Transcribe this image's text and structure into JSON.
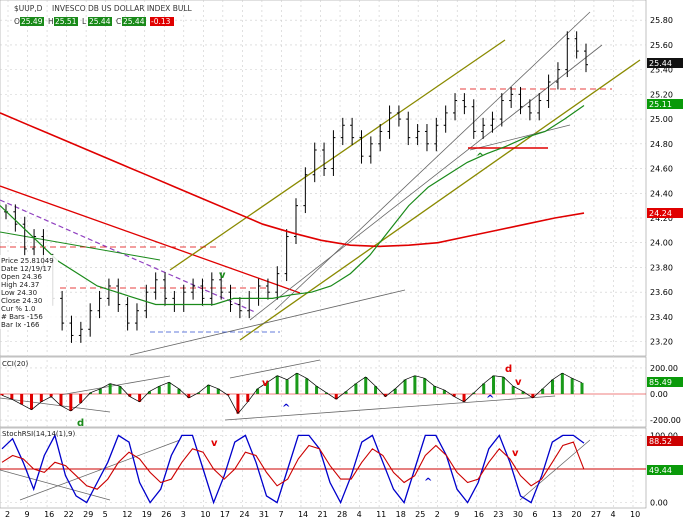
{
  "header": {
    "symbol": "$UUP,D",
    "title": "INVESCO DB US DOLLAR INDEX BULL",
    "items": [
      {
        "label": "O",
        "value": "25.49",
        "color": "#1a8a1a"
      },
      {
        "label": "H",
        "value": "25.51",
        "color": "#1a8a1a"
      },
      {
        "label": "L",
        "value": "25.44",
        "color": "#1a8a1a"
      },
      {
        "label": "C",
        "value": "25.44",
        "color": "#1a8a1a"
      },
      {
        "label": "",
        "value": "-0.13",
        "color": "#e00000"
      }
    ]
  },
  "info_box": [
    "Price  25.81049",
    "Date  12/19/17",
    "Open  24.36",
    "High  24.37",
    "Low  24.30",
    "Close  24.30",
    "Cur %  1.0",
    "# Bars  -156",
    "Bar Ix  -166"
  ],
  "colors": {
    "price_bar": "#000000",
    "ma_long": "#e00000",
    "ma_short": "#1a8a1a",
    "channel": "#8a8a00",
    "trend_gray": "#666666",
    "dash_purple": "#9040c0",
    "cci_fill": "#1a9a1a",
    "cci_neg": "#e00000",
    "stoch_fast": "#0000cc",
    "stoch_slow": "#cc0000",
    "label_bg_black": "#111111",
    "label_bg_green": "#0a9a0a",
    "label_bg_red": "#e00000"
  },
  "chart_data": [
    {
      "type": "line",
      "panel": "price",
      "ylim": [
        23.1,
        25.85
      ],
      "y_ticks": [
        "25.80",
        "25.60",
        "25.40",
        "25.20",
        "25.00",
        "24.80",
        "24.60",
        "24.40",
        "24.20",
        "24.00",
        "23.80",
        "23.60",
        "23.40",
        "23.20"
      ],
      "x_ticks": [
        "2",
        "9",
        "16",
        "22",
        "29",
        "5",
        "12",
        "19",
        "26",
        "3",
        "10",
        "17",
        "24",
        "31",
        "7",
        "14",
        "21",
        "28",
        "4",
        "11",
        "18",
        "25",
        "2",
        "9",
        "16",
        "23",
        "30",
        "6",
        "13",
        "20",
        "27",
        "4",
        "10"
      ],
      "last_price_label": "25.44",
      "ma_short_label": "25.11",
      "ma_long_label": "24.24",
      "series": [
        {
          "name": "",
          "role": "price",
          "values": [
            24.25,
            24.15,
            23.95,
            24.05,
            23.85,
            23.55,
            23.35,
            23.25,
            23.3,
            23.45,
            23.55,
            23.65,
            23.5,
            23.35,
            23.45,
            23.6,
            23.7,
            23.55,
            23.5,
            23.6,
            23.65,
            23.55,
            23.7,
            23.6,
            23.5,
            23.45,
            23.55,
            23.65,
            23.6,
            23.75,
            24.05,
            24.3,
            24.55,
            24.75,
            24.6,
            24.85,
            24.95,
            24.85,
            24.7,
            24.8,
            24.9,
            25.05,
            25.0,
            24.85,
            24.9,
            24.8,
            24.95,
            25.05,
            25.15,
            25.1,
            24.9,
            24.95,
            25.0,
            25.15,
            25.2,
            25.1,
            25.05,
            25.15,
            25.3,
            25.4,
            25.65,
            25.55,
            25.44
          ]
        },
        {
          "name": "",
          "role": "ma_short",
          "values": [
            24.3,
            24.15,
            24.0,
            23.85,
            23.75,
            23.65,
            23.6,
            23.55,
            23.5,
            23.5,
            23.5,
            23.5,
            23.55,
            23.55,
            23.55,
            23.58,
            23.6,
            23.65,
            23.75,
            23.9,
            24.1,
            24.3,
            24.45,
            24.55,
            24.65,
            24.72,
            24.78,
            24.85,
            24.9,
            25.0,
            25.11
          ]
        },
        {
          "name": "",
          "role": "ma_long",
          "values": [
            25.05,
            24.95,
            24.85,
            24.75,
            24.65,
            24.55,
            24.45,
            24.35,
            24.25,
            24.15,
            24.08,
            24.02,
            23.98,
            23.97,
            23.98,
            24.0,
            24.05,
            24.1,
            24.15,
            24.2,
            24.24
          ]
        }
      ],
      "annotations": [
        "v",
        "^"
      ]
    },
    {
      "type": "area",
      "panel": "cci",
      "title": "CCI(20)",
      "ylim": [
        -230,
        230
      ],
      "y_ticks": [
        "200.00",
        "0.00",
        "-200.00"
      ],
      "value_label": "85.49",
      "annotations": [
        "d",
        "v",
        "^",
        "d",
        "v",
        "^"
      ],
      "series": [
        {
          "name": "",
          "values": [
            -10,
            -40,
            -80,
            -120,
            -60,
            -20,
            -90,
            -130,
            -70,
            10,
            40,
            80,
            60,
            -20,
            -60,
            20,
            60,
            90,
            40,
            -30,
            10,
            70,
            40,
            -10,
            -150,
            -60,
            40,
            90,
            140,
            110,
            160,
            120,
            60,
            10,
            -40,
            20,
            80,
            130,
            60,
            -20,
            40,
            110,
            140,
            120,
            60,
            30,
            -20,
            -60,
            10,
            80,
            140,
            130,
            60,
            20,
            -30,
            40,
            110,
            160,
            120,
            85.49
          ]
        }
      ]
    },
    {
      "type": "line",
      "panel": "stochrsi",
      "title": "StochRSI(14,14(1),9)",
      "ylim": [
        -5,
        105
      ],
      "y_ticks": [
        "100.00",
        "0.00"
      ],
      "fast_label": "88.52",
      "slow_label": "49.44",
      "annotations": [
        "v",
        "^",
        "v"
      ],
      "series": [
        {
          "name": "",
          "role": "fast",
          "values": [
            80,
            95,
            60,
            20,
            70,
            100,
            40,
            10,
            0,
            30,
            60,
            100,
            90,
            30,
            0,
            20,
            70,
            100,
            100,
            50,
            0,
            40,
            90,
            100,
            60,
            10,
            0,
            50,
            100,
            100,
            80,
            30,
            0,
            40,
            90,
            100,
            60,
            20,
            0,
            50,
            100,
            100,
            70,
            20,
            0,
            30,
            80,
            100,
            60,
            10,
            0,
            40,
            90,
            100,
            100,
            88.52
          ]
        },
        {
          "name": "",
          "role": "slow",
          "values": [
            60,
            70,
            65,
            50,
            45,
            60,
            55,
            40,
            25,
            20,
            35,
            60,
            75,
            65,
            45,
            30,
            35,
            60,
            80,
            75,
            50,
            35,
            50,
            75,
            70,
            45,
            25,
            35,
            65,
            85,
            80,
            55,
            35,
            35,
            60,
            80,
            70,
            45,
            30,
            40,
            70,
            85,
            70,
            45,
            30,
            35,
            60,
            80,
            65,
            40,
            25,
            35,
            60,
            85,
            90,
            49.44
          ]
        }
      ]
    }
  ]
}
